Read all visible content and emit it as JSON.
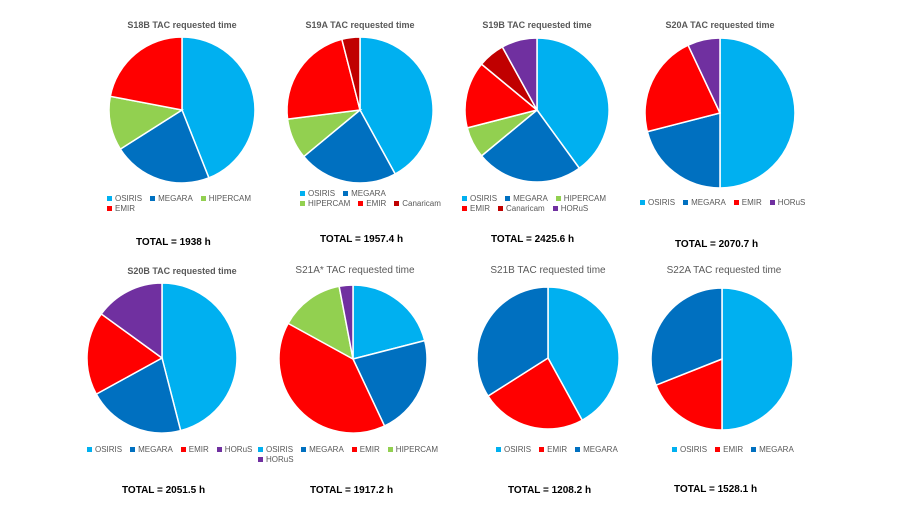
{
  "colors": {
    "OSIRIS": "#00b0f0",
    "MEGARA": "#0070c0",
    "HIPERCAM": "#92d050",
    "EMIR": "#ff0000",
    "Canaricam": "#c00000",
    "HORuS": "#7030a0"
  },
  "chart_data": [
    {
      "type": "pie",
      "title": "S18B TAC requested time",
      "series": [
        {
          "name": "OSIRIS",
          "value": 44
        },
        {
          "name": "MEGARA",
          "value": 22
        },
        {
          "name": "HIPERCAM",
          "value": 12
        },
        {
          "name": "EMIR",
          "value": 22
        }
      ],
      "legend": [
        "OSIRIS",
        "MEGARA",
        "HIPERCAM",
        "EMIR"
      ],
      "total": "TOTAL = 1938 h"
    },
    {
      "type": "pie",
      "title": "S19A TAC requested time",
      "series": [
        {
          "name": "OSIRIS",
          "value": 42
        },
        {
          "name": "MEGARA",
          "value": 22
        },
        {
          "name": "HIPERCAM",
          "value": 9
        },
        {
          "name": "EMIR",
          "value": 23
        },
        {
          "name": "Canaricam",
          "value": 4
        }
      ],
      "legend": [
        "OSIRIS",
        "MEGARA",
        "HIPERCAM",
        "EMIR",
        "Canaricam"
      ],
      "total": "TOTAL = 1957.4 h"
    },
    {
      "type": "pie",
      "title": "S19B TAC requested time",
      "series": [
        {
          "name": "OSIRIS",
          "value": 40
        },
        {
          "name": "MEGARA",
          "value": 24
        },
        {
          "name": "HIPERCAM",
          "value": 7
        },
        {
          "name": "EMIR",
          "value": 15
        },
        {
          "name": "Canaricam",
          "value": 6
        },
        {
          "name": "HORuS",
          "value": 8
        }
      ],
      "legend": [
        "OSIRIS",
        "MEGARA",
        "HIPERCAM",
        "EMIR",
        "Canaricam",
        "HORuS"
      ],
      "total": "TOTAL = 2425.6 h"
    },
    {
      "type": "pie",
      "title": "S20A TAC requested time",
      "series": [
        {
          "name": "OSIRIS",
          "value": 50
        },
        {
          "name": "MEGARA",
          "value": 21
        },
        {
          "name": "EMIR",
          "value": 22
        },
        {
          "name": "HORuS",
          "value": 7
        }
      ],
      "legend": [
        "OSIRIS",
        "MEGARA",
        "EMIR",
        "HORuS"
      ],
      "total": "TOTAL = 2070.7 h"
    },
    {
      "type": "pie",
      "title": "S20B TAC requested time",
      "series": [
        {
          "name": "OSIRIS",
          "value": 46
        },
        {
          "name": "MEGARA",
          "value": 21
        },
        {
          "name": "EMIR",
          "value": 18
        },
        {
          "name": "HORuS",
          "value": 15
        }
      ],
      "legend": [
        "OSIRIS",
        "MEGARA",
        "EMIR",
        "HORuS"
      ],
      "total": "TOTAL = 2051.5 h"
    },
    {
      "type": "pie",
      "title": "S21A* TAC requested time",
      "series": [
        {
          "name": "OSIRIS",
          "value": 21
        },
        {
          "name": "MEGARA",
          "value": 22
        },
        {
          "name": "EMIR",
          "value": 40
        },
        {
          "name": "HIPERCAM",
          "value": 14
        },
        {
          "name": "HORuS",
          "value": 3
        }
      ],
      "legend": [
        "OSIRIS",
        "MEGARA",
        "EMIR",
        "HIPERCAM",
        "HORuS"
      ],
      "total": "TOTAL = 1917.2 h"
    },
    {
      "type": "pie",
      "title": "S21B TAC requested time",
      "series": [
        {
          "name": "OSIRIS",
          "value": 42
        },
        {
          "name": "EMIR",
          "value": 24
        },
        {
          "name": "MEGARA",
          "value": 34
        }
      ],
      "legend": [
        "OSIRIS",
        "EMIR",
        "MEGARA"
      ],
      "total": "TOTAL = 1208.2 h"
    },
    {
      "type": "pie",
      "title": "S22A TAC requested time",
      "series": [
        {
          "name": "OSIRIS",
          "value": 50
        },
        {
          "name": "EMIR",
          "value": 19
        },
        {
          "name": "MEGARA",
          "value": 31
        }
      ],
      "legend": [
        "OSIRIS",
        "EMIR",
        "MEGARA"
      ],
      "total": "TOTAL = 1528.1 h"
    }
  ]
}
